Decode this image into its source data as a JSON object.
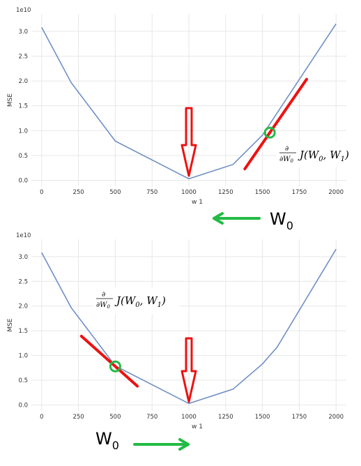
{
  "chart_data": [
    {
      "type": "line",
      "x": [
        0,
        200,
        500,
        1000,
        1300,
        1500,
        2000
      ],
      "y": [
        3.08,
        1.97,
        0.79,
        0.03,
        0.32,
        0.91,
        3.15
      ],
      "y_exponent_label": "1e10",
      "xlabel": "w 1",
      "ylabel": "MSE",
      "xlim": [
        -70,
        2070
      ],
      "ylim": [
        -0.12,
        3.35
      ],
      "xticks": [
        0,
        250,
        500,
        750,
        1000,
        1250,
        1500,
        1750,
        2000
      ],
      "yticks": [
        0.0,
        0.5,
        1.0,
        1.5,
        2.0,
        2.5,
        3.0
      ],
      "xtick_labels": [
        "0",
        "250",
        "500",
        "750",
        "1000",
        "1250",
        "1500",
        "1750",
        "2000"
      ],
      "ytick_labels": [
        "0.0",
        "0.5",
        "1.0",
        "1.5",
        "2.0",
        "2.5",
        "3.0"
      ],
      "grid": true,
      "line_color": "#6f8fc7",
      "annotations": {
        "minimum_marker_x": 1000,
        "tangent_point": [
          1550,
          0.96
        ],
        "tangent_slope": 0.0043,
        "tangent_x_range": [
          1380,
          1800
        ],
        "formula_prefix": "∂",
        "formula_denominator": "∂W",
        "formula_denominator_sub": "0",
        "formula_J": "J(W",
        "formula_sub0": "0",
        "formula_mid": ", W",
        "formula_sub1": "1",
        "formula_end": ")",
        "w_label": "W",
        "w_sub": "0",
        "arrow_direction": "left"
      }
    },
    {
      "type": "line",
      "x": [
        0,
        200,
        500,
        1000,
        1300,
        1500,
        1600,
        2000
      ],
      "y": [
        3.08,
        1.97,
        0.79,
        0.03,
        0.32,
        0.83,
        1.17,
        3.15
      ],
      "y_exponent_label": "1e10",
      "xlabel": "w 1",
      "ylabel": "MSE",
      "xlim": [
        -70,
        2070
      ],
      "ylim": [
        -0.12,
        3.35
      ],
      "xticks": [
        0,
        250,
        500,
        750,
        1000,
        1250,
        1500,
        1750,
        2000
      ],
      "yticks": [
        0.0,
        0.5,
        1.0,
        1.5,
        2.0,
        2.5,
        3.0
      ],
      "xtick_labels": [
        "0",
        "250",
        "500",
        "750",
        "1000",
        "1250",
        "1500",
        "1750",
        "2000"
      ],
      "ytick_labels": [
        "0.0",
        "0.5",
        "1.0",
        "1.5",
        "2.0",
        "2.5",
        "3.0"
      ],
      "grid": true,
      "line_color": "#6f8fc7",
      "annotations": {
        "minimum_marker_x": 1000,
        "tangent_point": [
          500,
          0.78
        ],
        "tangent_slope": -0.00266,
        "tangent_x_range": [
          270,
          650
        ],
        "formula_prefix": "∂",
        "formula_denominator": "∂W",
        "formula_denominator_sub": "0",
        "formula_J": "J(W",
        "formula_sub0": "0",
        "formula_mid": ", W",
        "formula_sub1": "1",
        "formula_end": ")",
        "w_label": "W",
        "w_sub": "0",
        "arrow_direction": "right"
      }
    }
  ],
  "colors": {
    "red": "#ee1111",
    "green": "#22bb44",
    "grid": "#e7e7e7",
    "plot_bg": "#ffffff"
  }
}
